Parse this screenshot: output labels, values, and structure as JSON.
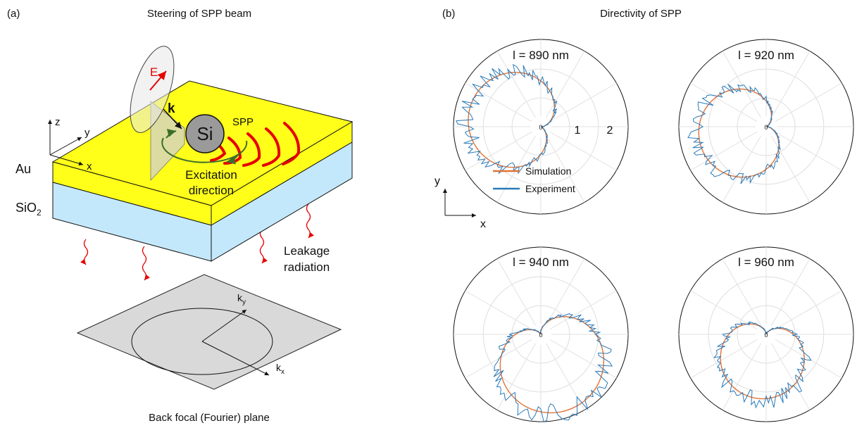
{
  "panel_a": {
    "label": "(a)",
    "title": "Steering of SPP beam",
    "field_label": "E",
    "wavevector_label": "k",
    "particle_label": "Si",
    "spp_label": "SPP",
    "excitation_line1": "Excitation",
    "excitation_line2": "direction",
    "axis_z": "z",
    "axis_y": "y",
    "axis_x": "x",
    "layer_top": "Au",
    "layer_bottom_base": "SiO",
    "layer_bottom_sub": "2",
    "leakage_line1": "Leakage",
    "leakage_line2": "radiation",
    "kx_base": "k",
    "kx_sub": "x",
    "ky_base": "k",
    "ky_sub": "y",
    "plane_caption": "Back focal (Fourier) plane",
    "colors": {
      "gold": "#ffff1a",
      "substrate": "#c4e8fb",
      "spp": "#e60000",
      "loop": "#3d6e2a",
      "plane": "#d9d9d9"
    }
  },
  "panel_b": {
    "label": "(b)",
    "title": "Directivity of SPP",
    "plots": [
      {
        "title": "l = 890 nm",
        "center_label": "0"
      },
      {
        "title": "l = 920 nm",
        "center_label": "0"
      },
      {
        "title": "l = 940 nm",
        "center_label": "0"
      },
      {
        "title": "l = 960 nm",
        "center_label": "0"
      }
    ],
    "radial_ticks": [
      "1",
      "2"
    ],
    "legend": [
      {
        "name": "Simulation",
        "color": "#e0733a"
      },
      {
        "name": "Experiment",
        "color": "#2a7ab8"
      }
    ],
    "axis_y": "y",
    "axis_x": "x"
  }
}
